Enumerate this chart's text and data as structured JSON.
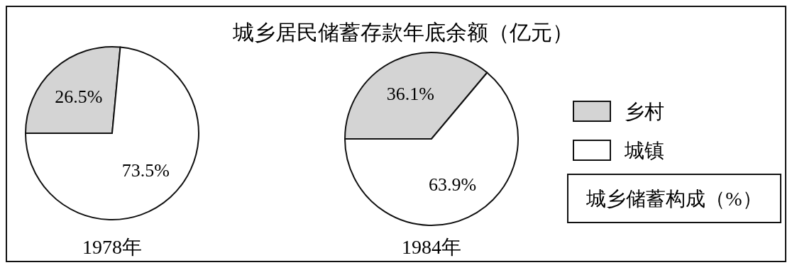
{
  "chart_data": {
    "type": "pie",
    "title": "城乡居民储蓄存款年底余额（亿元）",
    "categories": [
      "乡村",
      "城镇"
    ],
    "colors": [
      "#d4d4d4",
      "#ffffff"
    ],
    "series": [
      {
        "name": "1978年",
        "values": [
          26.5,
          73.5
        ],
        "value_labels": [
          "26.5%",
          "73.5%"
        ]
      },
      {
        "name": "1984年",
        "values": [
          36.1,
          63.9
        ],
        "value_labels": [
          "36.1%",
          "63.9%"
        ]
      }
    ],
    "legend": "right",
    "legend_title": "城乡储蓄构成（%）"
  }
}
